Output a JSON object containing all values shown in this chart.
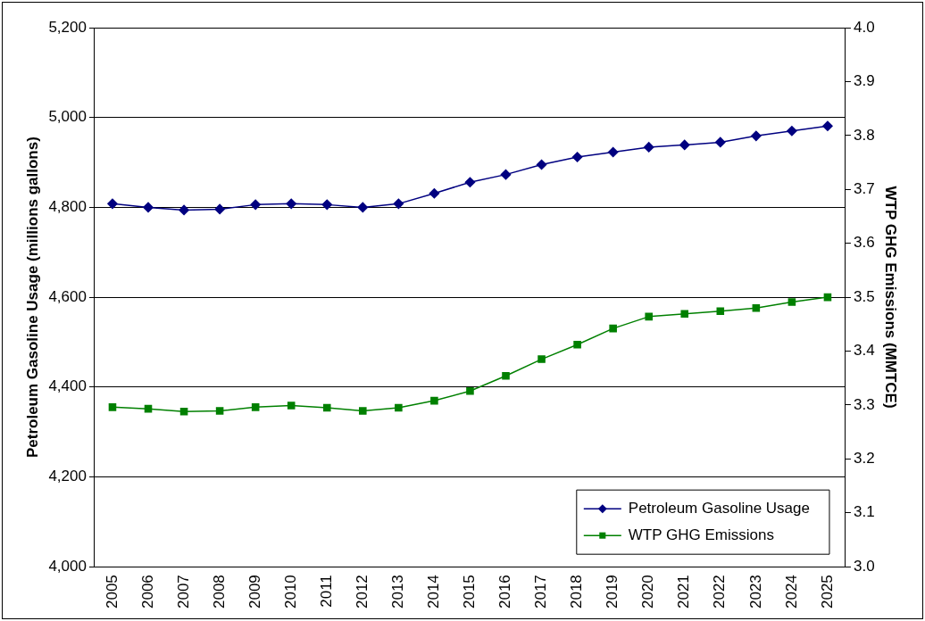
{
  "chart_data": {
    "type": "line",
    "ylabel": "Petroleum Gasoline Usage (millions gallons)",
    "y2label": "WTP GHG Emissions (MMTCE)",
    "categories": [
      "2005",
      "2006",
      "2007",
      "2008",
      "2009",
      "2010",
      "2011",
      "2012",
      "2013",
      "2014",
      "2015",
      "2016",
      "2017",
      "2018",
      "2019",
      "2020",
      "2021",
      "2022",
      "2023",
      "2024",
      "2025"
    ],
    "series": [
      {
        "name": "Petroleum Gasoline Usage",
        "color": "#000080",
        "marker": "diamond",
        "values": [
          4808,
          4800,
          4794,
          4796,
          4806,
          4808,
          4806,
          4800,
          4808,
          4831,
          4856,
          4873,
          4895,
          4912,
          4923,
          4934,
          4939,
          4945,
          4959,
          4970,
          4981
        ]
      },
      {
        "name": "WTP GHG Emissions",
        "color": "#008000",
        "marker": "square",
        "axis": "y2",
        "values": [
          3.296,
          3.293,
          3.288,
          3.289,
          3.296,
          3.299,
          3.295,
          3.289,
          3.295,
          3.308,
          3.326,
          3.354,
          3.385,
          3.412,
          3.442,
          3.464,
          3.469,
          3.474,
          3.48,
          3.491,
          3.5
        ]
      }
    ],
    "ylim": [
      4000,
      5200
    ],
    "yticks": [
      {
        "value": 4000,
        "label": "4,000"
      },
      {
        "value": 4200,
        "label": "4,200"
      },
      {
        "value": 4400,
        "label": "4,400"
      },
      {
        "value": 4600,
        "label": "4,600"
      },
      {
        "value": 4800,
        "label": "4,800"
      },
      {
        "value": 5000,
        "label": "5,000"
      },
      {
        "value": 5200,
        "label": "5,200"
      }
    ],
    "y2lim": [
      3,
      4
    ],
    "y2ticks": [
      {
        "value": 3,
        "label": "3.0"
      },
      3.1,
      3.2,
      3.3,
      3.4,
      3.5,
      3.6,
      3.7,
      3.8,
      3.9,
      {
        "value": 4,
        "label": "4.0"
      }
    ],
    "grid": "y",
    "legend": "bottom right",
    "line_style": "solid"
  }
}
